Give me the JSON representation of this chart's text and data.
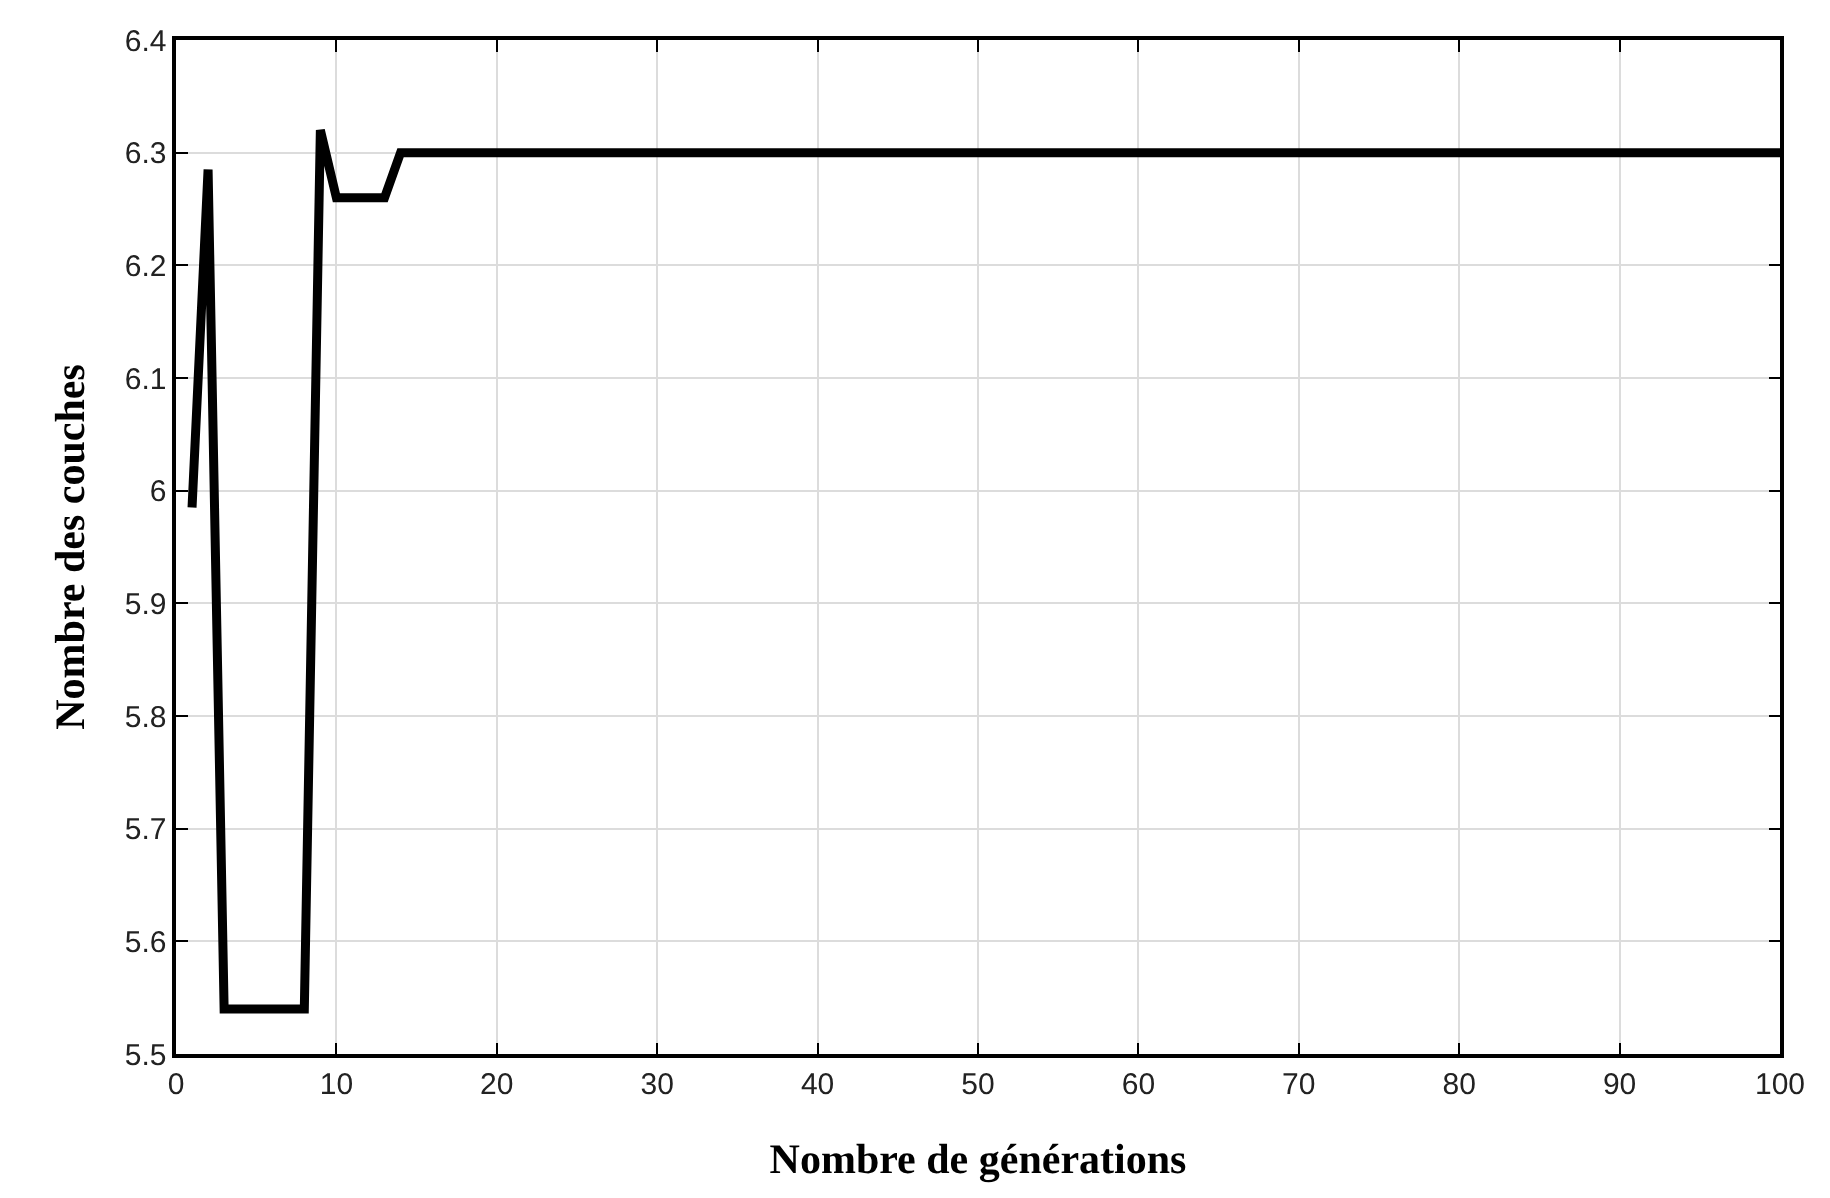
{
  "chart_data": {
    "type": "line",
    "xlabel": "Nombre de générations",
    "ylabel": "Nombre des couches",
    "x": [
      1,
      2,
      3,
      8,
      9,
      10,
      13,
      14,
      100
    ],
    "series": [
      {
        "color": "#000000",
        "values": [
          5.985,
          6.285,
          5.54,
          5.54,
          6.32,
          6.26,
          6.26,
          6.3,
          6.3
        ]
      }
    ],
    "xlim": [
      0,
      100
    ],
    "xticks": [
      0,
      10,
      20,
      30,
      40,
      50,
      60,
      70,
      80,
      90,
      100
    ],
    "ylim": [
      5.5,
      6.4
    ],
    "yticks": [
      5.5,
      5.6,
      5.7,
      5.8,
      5.9,
      6,
      6.1,
      6.2,
      6.3,
      6.4
    ],
    "grid": true,
    "marker": "none",
    "line_style": "solid"
  }
}
